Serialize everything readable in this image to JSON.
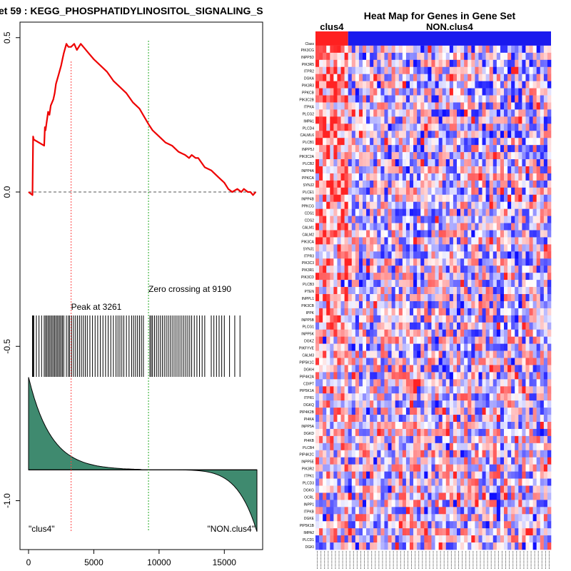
{
  "chart_data": [
    {
      "type": "line",
      "title": "et  59 : KEGG_PHOSPHATIDYLINOSITOL_SIGNALING_S",
      "xlim": [
        0,
        17500
      ],
      "ylim": [
        -1.1,
        0.52
      ],
      "x_ticks": [
        "0",
        "5000",
        "10000",
        "15000"
      ],
      "x_tick_values": [
        0,
        5000,
        10000,
        15000
      ],
      "y_ticks": [
        "0.5",
        "0.0",
        "-0.5",
        "-1.0"
      ],
      "y_tick_values": [
        0.5,
        0.0,
        -0.5,
        -1.0
      ],
      "series": [
        {
          "name": "enrichment score",
          "color": "#ee0000",
          "x": [
            0,
            300,
            350,
            400,
            1200,
            1250,
            1300,
            1500,
            1600,
            1700,
            1900,
            2000,
            2100,
            2300,
            2500,
            2600,
            2700,
            2900,
            3050,
            3261,
            3500,
            3700,
            4000,
            4200,
            4600,
            5000,
            5500,
            6000,
            6500,
            7000,
            7500,
            8000,
            8500,
            9190,
            9500,
            10000,
            10500,
            11000,
            11500,
            12000,
            12300,
            12500,
            12800,
            13000,
            13500,
            14000,
            14500,
            15000,
            15300,
            15600,
            16000,
            16300,
            16500,
            16800,
            17000,
            17200,
            17400
          ],
          "y": [
            0.0,
            -0.01,
            0.18,
            0.17,
            0.15,
            0.21,
            0.2,
            0.26,
            0.25,
            0.28,
            0.3,
            0.32,
            0.35,
            0.38,
            0.41,
            0.43,
            0.45,
            0.48,
            0.47,
            0.47,
            0.48,
            0.46,
            0.48,
            0.47,
            0.45,
            0.43,
            0.41,
            0.39,
            0.36,
            0.34,
            0.32,
            0.29,
            0.27,
            0.22,
            0.2,
            0.18,
            0.16,
            0.15,
            0.13,
            0.12,
            0.11,
            0.12,
            0.11,
            0.11,
            0.08,
            0.07,
            0.05,
            0.03,
            0.01,
            0.0,
            0.01,
            0.0,
            0.01,
            0.0,
            0.0,
            -0.01,
            0.0
          ]
        }
      ],
      "zero_line": 0.0,
      "peak": {
        "x": 3261,
        "label": "Peak at 3261",
        "color": "#ff4444"
      },
      "zero_crossing": {
        "x": 9190,
        "label": "Zero crossing at 9190",
        "color": "#22aa22"
      },
      "hits": [
        300,
        350,
        400,
        600,
        800,
        1000,
        1200,
        1300,
        1400,
        1500,
        1600,
        1700,
        1800,
        1900,
        2000,
        2100,
        2200,
        2300,
        2400,
        2500,
        2600,
        2700,
        2900,
        3050,
        3150,
        3300,
        3450,
        3600,
        3750,
        3900,
        4050,
        4200,
        4350,
        4500,
        4700,
        4900,
        5100,
        5300,
        5500,
        5700,
        5900,
        6100,
        6300,
        6500,
        6700,
        6850,
        7000,
        7150,
        7300,
        7500,
        7700,
        7900,
        8050,
        8200,
        8350,
        8500,
        8650,
        8800,
        9300,
        9400,
        9500,
        9650,
        9800,
        9950,
        10100,
        10250,
        10400,
        10550,
        10700,
        10850,
        11000,
        11150,
        11300,
        11450,
        11600,
        11750,
        11900,
        12050,
        12200,
        12350,
        12500,
        12700,
        12900,
        13100,
        13300,
        13500,
        14000,
        14200,
        14400,
        14600,
        14800,
        15000,
        15400,
        15800,
        16200
      ],
      "ranked_metric": {
        "fill": "#3f8a6f",
        "baseline": -0.9,
        "start": -0.6,
        "end": -1.1
      },
      "labels": {
        "left": "\"clus4\"",
        "right": "\"NON.clus4\""
      }
    },
    {
      "type": "heatmap",
      "title": "Heat Map for Genes in Gene Set",
      "groups": [
        {
          "name": "clus4",
          "color": "#ff2020",
          "n_samples": 9
        },
        {
          "name": "NON.clus4",
          "color": "#1a1aee",
          "n_samples": 56
        }
      ],
      "class_label": "Class",
      "genes": [
        "PIK3CG",
        "INPP5D",
        "PIK3R5",
        "ITPR2",
        "DGKA",
        "PIK3R3",
        "PPKCB",
        "PIK3C2B",
        "ITPKA",
        "PLCG2",
        "IMPA1",
        "PLCD4",
        "CALML6",
        "PLCB1",
        "INPP5J",
        "PIK3C2A",
        "PLCB2",
        "INPP4A",
        "PPKCA",
        "SYNJ2",
        "PLCE1",
        "INPP4B",
        "PPKCG",
        "CDS1",
        "CDS2",
        "CALM1",
        "CALM2",
        "PIK3CA",
        "SYNJ1",
        "ITPR3",
        "PIK3C3",
        "PIK3R1",
        "PIK3CD",
        "PLCB3",
        "PTEN",
        "INPPL1",
        "PIK3CB",
        "IPPK",
        "INPP5B",
        "PLCG1",
        "INPP5K",
        "DGKZ",
        "PIKFYVE",
        "CALM3",
        "PIP5K1C",
        "DGKH",
        "PIP4K2A",
        "CDIPT",
        "PIP5K1A",
        "ITPR1",
        "DGKQ",
        "PIP4K2B",
        "PI4KA",
        "INPP5A",
        "DGKD",
        "PI4KB",
        "PLCB4",
        "PIP4K2C",
        "INPP5E",
        "PIK3R2",
        "ITPK1",
        "PLCD3",
        "DGKG",
        "OCRL",
        "INPP1",
        "ITPKB",
        "DGKE",
        "PIP5K1B",
        "IMPA2",
        "PLCD1",
        "DGKI"
      ]
    }
  ]
}
